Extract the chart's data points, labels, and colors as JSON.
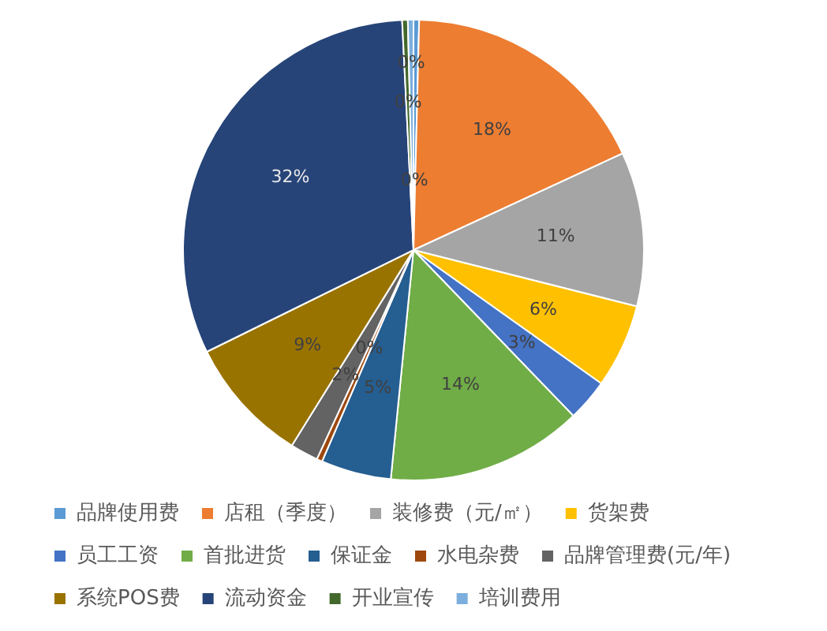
{
  "chart_data": {
    "type": "pie",
    "categories": [
      "品牌使用费",
      "店租（季度）",
      "装修费（元/㎡）",
      "货架费",
      "员工工资",
      "首批进货",
      "保证金",
      "水电杂费",
      "品牌管理费(元/年)",
      "系统POS费",
      "流动资金",
      "开业宣传",
      "培训费用"
    ],
    "values": [
      0.4,
      18,
      11,
      6,
      3,
      14,
      5,
      0.4,
      2,
      9,
      32,
      0.4,
      0.4
    ],
    "value_labels": [
      "0%",
      "18%",
      "11%",
      "6%",
      "3%",
      "14%",
      "5%",
      "0%",
      "2%",
      "9%",
      "32%",
      "0%",
      "0%"
    ],
    "colors": [
      "#5b9bd5",
      "#ed7d31",
      "#a5a5a5",
      "#ffc000",
      "#4472c4",
      "#70ad47",
      "#255e91",
      "#9e480e",
      "#636363",
      "#997300",
      "#264478",
      "#43682b",
      "#7cafdd"
    ],
    "legend": "bottom"
  }
}
